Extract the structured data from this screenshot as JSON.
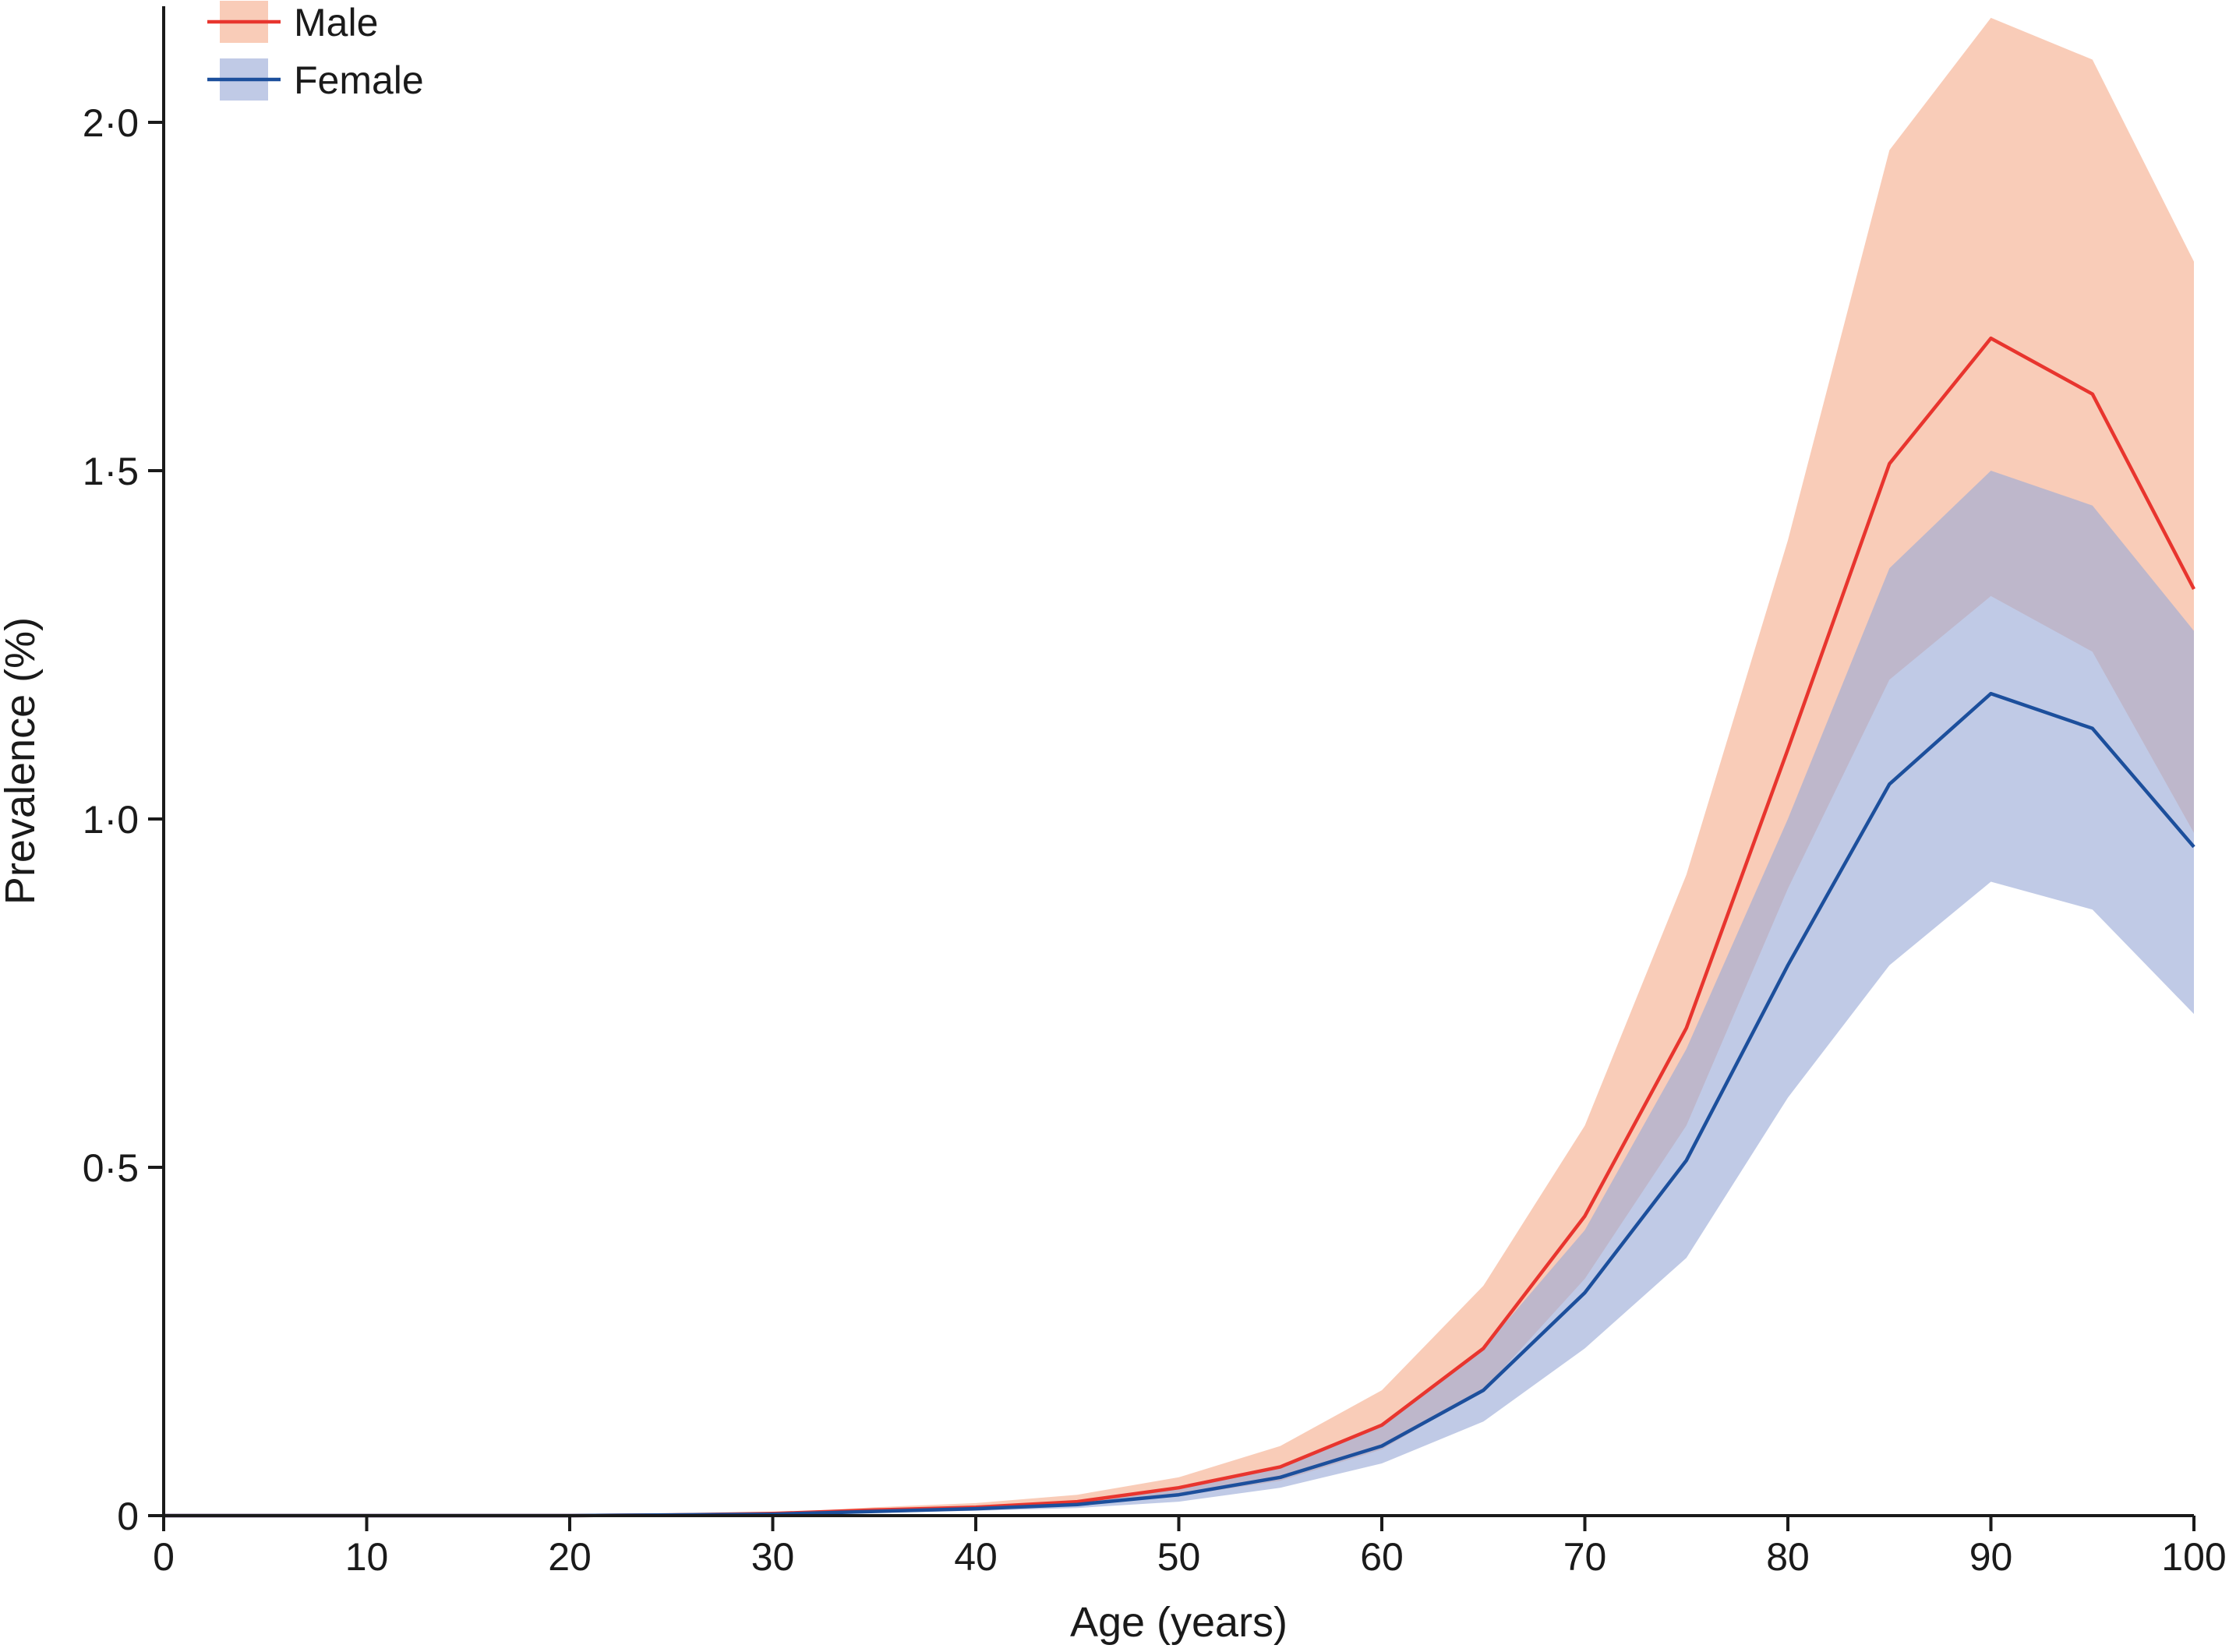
{
  "chart_data": {
    "type": "line",
    "title": "",
    "xlabel": "Age (years)",
    "ylabel": "Prevalence (%)",
    "xlim": [
      0,
      100
    ],
    "ylim": [
      0,
      2.0
    ],
    "x_ticks": [
      "0",
      "10",
      "20",
      "30",
      "40",
      "50",
      "60",
      "70",
      "80",
      "90",
      "100"
    ],
    "y_ticks": [
      "0",
      "0·5",
      "1·0",
      "1·5",
      "2·0"
    ],
    "legend_position": "top-left",
    "grid": false,
    "x": [
      0,
      5,
      10,
      15,
      20,
      25,
      30,
      35,
      40,
      45,
      50,
      55,
      60,
      65,
      70,
      75,
      80,
      85,
      90,
      95,
      100
    ],
    "series": [
      {
        "name": "Male",
        "line_color": "#e8352e",
        "band_color": "#f6b89d",
        "values": [
          0,
          0,
          0,
          0,
          0,
          0.001,
          0.003,
          0.008,
          0.012,
          0.02,
          0.04,
          0.07,
          0.13,
          0.24,
          0.43,
          0.7,
          1.1,
          1.51,
          1.69,
          1.61,
          1.33
        ],
        "lower": [
          0,
          0,
          0,
          0,
          0,
          0.0005,
          0.002,
          0.005,
          0.008,
          0.014,
          0.028,
          0.05,
          0.095,
          0.18,
          0.34,
          0.56,
          0.9,
          1.2,
          1.32,
          1.24,
          0.98
        ],
        "upper": [
          0,
          0,
          0,
          0,
          0,
          0.002,
          0.004,
          0.012,
          0.018,
          0.03,
          0.055,
          0.1,
          0.18,
          0.33,
          0.56,
          0.92,
          1.4,
          1.96,
          2.15,
          2.09,
          1.8
        ]
      },
      {
        "name": "Female",
        "line_color": "#1c4f9c",
        "band_color": "#9aaad6",
        "values": [
          0,
          0,
          0,
          0,
          0,
          0.001,
          0.002,
          0.006,
          0.01,
          0.016,
          0.03,
          0.055,
          0.1,
          0.18,
          0.32,
          0.51,
          0.79,
          1.05,
          1.18,
          1.13,
          0.96
        ],
        "lower": [
          0,
          0,
          0,
          0,
          0,
          0.0005,
          0.0015,
          0.004,
          0.007,
          0.011,
          0.02,
          0.04,
          0.075,
          0.135,
          0.24,
          0.37,
          0.6,
          0.79,
          0.91,
          0.87,
          0.72
        ],
        "upper": [
          0,
          0,
          0,
          0,
          0,
          0.0015,
          0.003,
          0.008,
          0.014,
          0.022,
          0.04,
          0.07,
          0.13,
          0.24,
          0.41,
          0.67,
          1.0,
          1.36,
          1.5,
          1.45,
          1.27
        ]
      }
    ]
  }
}
